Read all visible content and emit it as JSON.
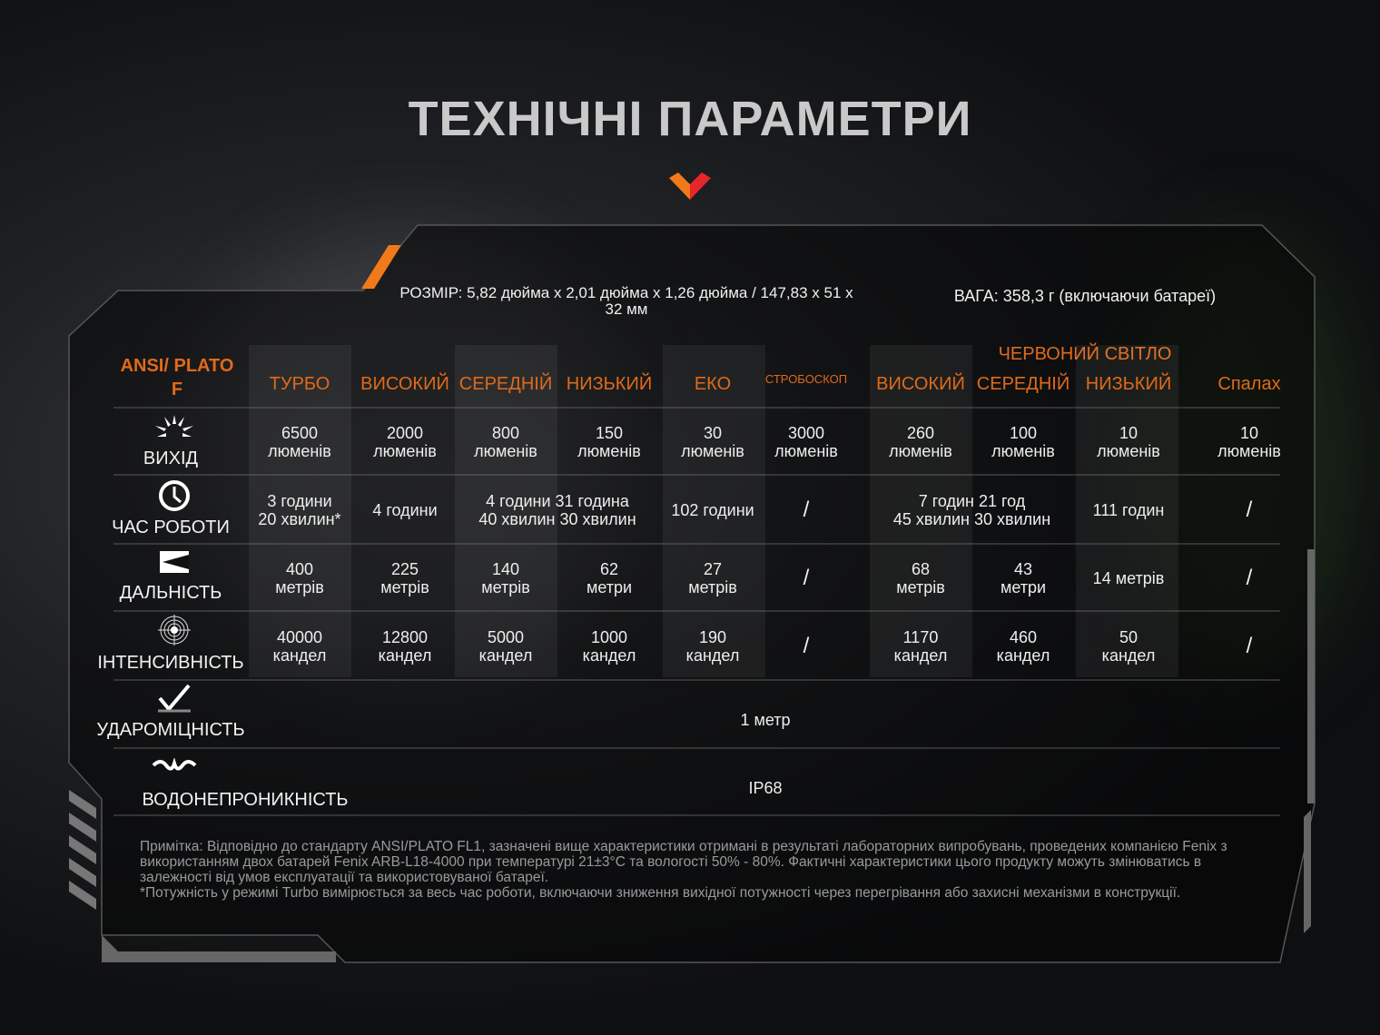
{
  "title": "ТЕХНІЧНІ ПАРАМЕТРИ",
  "size": "РОЗМІР: 5,82 дюйма x 2,01 дюйма x 1,26 дюйма / 147,83 x 51 x 32 мм",
  "weight": "ВАГА: 358,3 г (включаючи батареї)",
  "accent_color": "#e06a1a",
  "table": {
    "corner_label": "ANSI/ PLATO F",
    "group_header": "ЧЕРВОНИЙ СВІТЛО",
    "columns": [
      "ТУРБО",
      "ВИСОКИЙ",
      "СЕРЕДНІЙ",
      "НИЗЬКИЙ",
      "ЕКО",
      "СТРОБОСКОП",
      "ВИСОКИЙ",
      "СЕРЕДНІЙ",
      "НИЗЬКИЙ",
      "Спалах"
    ],
    "rows": [
      {
        "label": "ВИХІД",
        "icon": "light-burst-icon",
        "cells": [
          "6500\nлюменів",
          "2000\nлюменів",
          "800\nлюменів",
          "150\nлюменів",
          "30\nлюменів",
          "3000\nлюменів",
          "260\nлюменів",
          "100\nлюменів",
          "10\nлюменів",
          "10\nлюменів"
        ]
      },
      {
        "label": "ЧАС РОБОТИ",
        "icon": "clock-icon",
        "cells": [
          "3 години\n20 хвилин*",
          "4 години",
          "4 години 31 година\n40 хвилин 30 хвилин",
          null,
          "102 години",
          "/",
          "7 годин 21 год\n45 хвилин 30 хвилин",
          null,
          "111 годин",
          "/"
        ]
      },
      {
        "label": "ДАЛЬНІСТЬ",
        "icon": "beam-distance-icon",
        "cells": [
          "400\nметрів",
          "225\nметрів",
          "140\nметрів",
          "62\nметри",
          "27\nметрів",
          "/",
          "68\nметрів",
          "43\nметри",
          "14 метрів",
          "/"
        ]
      },
      {
        "label": "ІНТЕНСИВНІСТЬ",
        "icon": "target-icon",
        "cells": [
          "40000\nкандел",
          "12800\nкандел",
          "5000\nкандел",
          "1000\nкандел",
          "190\nкандел",
          "/",
          "1170\nкандел",
          "460\nкандел",
          "50\nкандел",
          "/"
        ]
      },
      {
        "label": "УДАРОМІЦНІСТЬ",
        "icon": "impact-icon",
        "span_value": "1 метр"
      },
      {
        "label": "ВОДОНЕПРОНИКНІСТЬ",
        "icon": "water-icon",
        "span_value": "IP68"
      }
    ]
  },
  "note": "Примітка: Відповідно до стандарту ANSI/PLATO FL1, зазначені вище характеристики отримані в результаті лабораторних випробувань, проведених компанією Fenix з використанням двох батарей Fenix ARB-L18-4000 при температурі 21±3°C та вологості 50% - 80%. Фактичні характеристики цього продукту можуть змінюватись в залежності від умов експлуатації та використовуваної батареї.",
  "note_turbo": "*Потужність у режимі Turbo вимірюється за весь час роботи, включаючи зниження вихідної потужності через перегрівання або захисні механізми в конструкції."
}
